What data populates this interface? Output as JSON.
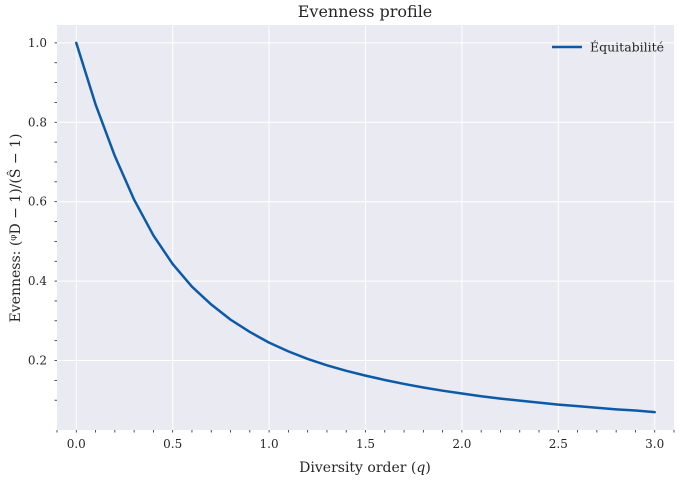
{
  "chart_data": {
    "type": "line",
    "title": "Evenness profile",
    "xlabel_text": "Diversity order (",
    "xlabel_var": "q",
    "xlabel_close": ")",
    "ylabel": "Evenness: (ᵠD − 1)/(Ŝ − 1)",
    "xlim": [
      -0.1,
      3.1
    ],
    "ylim": [
      0.025,
      1.045
    ],
    "xticks": [
      "0.0",
      "0.5",
      "1.0",
      "1.5",
      "2.0",
      "2.5",
      "3.0"
    ],
    "yticks": [
      "0.2",
      "0.4",
      "0.6",
      "0.8",
      "1.0"
    ],
    "grid": true,
    "legend_position": "top-right",
    "background_color": "#eaeaf2",
    "series": [
      {
        "name": "Équitabilité",
        "color": "#0b5aa8",
        "x": [
          0.0,
          0.1,
          0.2,
          0.3,
          0.4,
          0.5,
          0.6,
          0.7,
          0.8,
          0.9,
          1.0,
          1.1,
          1.2,
          1.3,
          1.4,
          1.5,
          1.6,
          1.7,
          1.8,
          1.9,
          2.0,
          2.1,
          2.2,
          2.3,
          2.4,
          2.5,
          2.6,
          2.7,
          2.8,
          2.9,
          3.0
        ],
        "y": [
          1.0,
          0.845,
          0.715,
          0.605,
          0.515,
          0.443,
          0.386,
          0.341,
          0.303,
          0.272,
          0.245,
          0.223,
          0.204,
          0.188,
          0.174,
          0.162,
          0.151,
          0.141,
          0.132,
          0.124,
          0.117,
          0.11,
          0.104,
          0.099,
          0.094,
          0.089,
          0.085,
          0.081,
          0.077,
          0.074,
          0.07
        ]
      }
    ]
  }
}
